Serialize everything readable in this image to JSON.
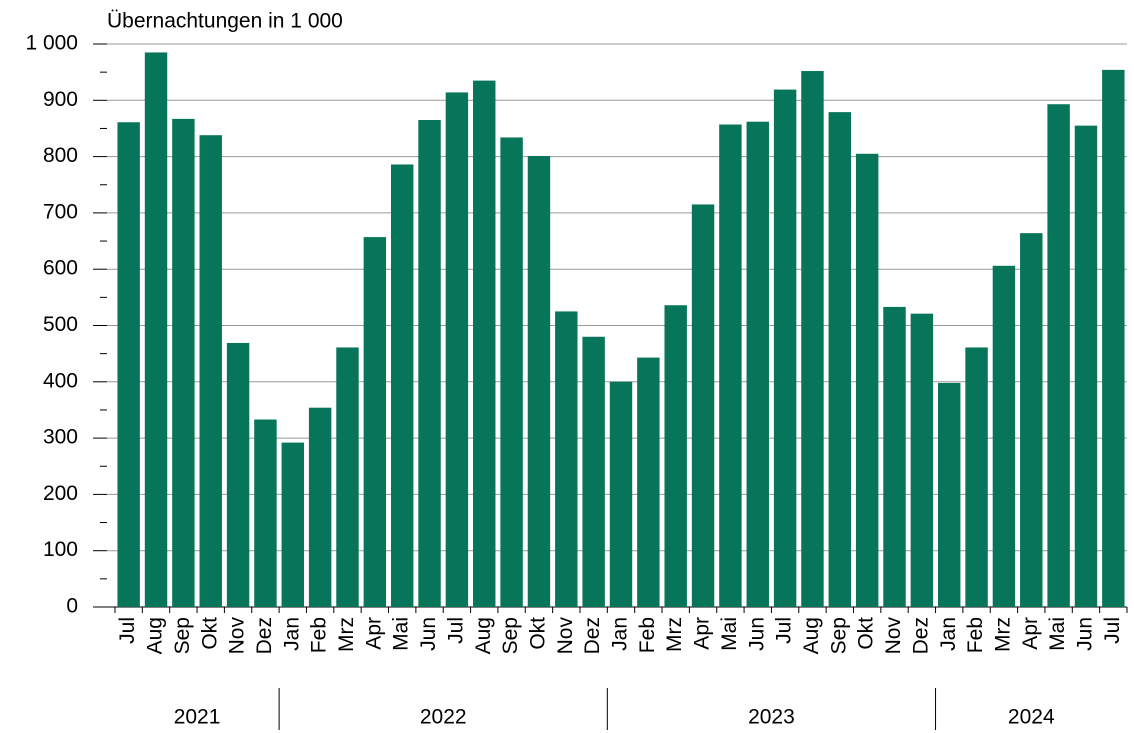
{
  "chart_data": {
    "type": "bar",
    "y_axis_label": "Übernachtungen in 1 000",
    "color": "#077559",
    "ylim": [
      0,
      1000
    ],
    "yticks": [
      0,
      100,
      200,
      300,
      400,
      500,
      600,
      700,
      800,
      900,
      {
        "value": 1000,
        "label": "1 000"
      }
    ],
    "grid": true,
    "groups": [
      {
        "label": "2021",
        "categories": [
          "Jul",
          "Aug",
          "Sep",
          "Okt",
          "Nov",
          "Dez"
        ],
        "values": [
          861,
          985,
          867,
          838,
          469,
          333
        ]
      },
      {
        "label": "2022",
        "categories": [
          "Jan",
          "Feb",
          "Mrz",
          "Apr",
          "Mai",
          "Jun",
          "Jul",
          "Aug",
          "Sep",
          "Okt",
          "Nov",
          "Dez"
        ],
        "values": [
          292,
          354,
          461,
          657,
          786,
          865,
          914,
          935,
          834,
          801,
          525,
          480
        ]
      },
      {
        "label": "2023",
        "categories": [
          "Jan",
          "Feb",
          "Mrz",
          "Apr",
          "Mai",
          "Jun",
          "Jul",
          "Aug",
          "Sep",
          "Okt",
          "Nov",
          "Dez"
        ],
        "values": [
          400,
          443,
          536,
          715,
          857,
          862,
          919,
          952,
          879,
          805,
          533,
          521
        ]
      },
      {
        "label": "2024",
        "categories": [
          "Jan",
          "Feb",
          "Mrz",
          "Apr",
          "Mai",
          "Jun",
          "Jul"
        ],
        "values": [
          398,
          461,
          606,
          664,
          893,
          855,
          954
        ]
      }
    ]
  }
}
